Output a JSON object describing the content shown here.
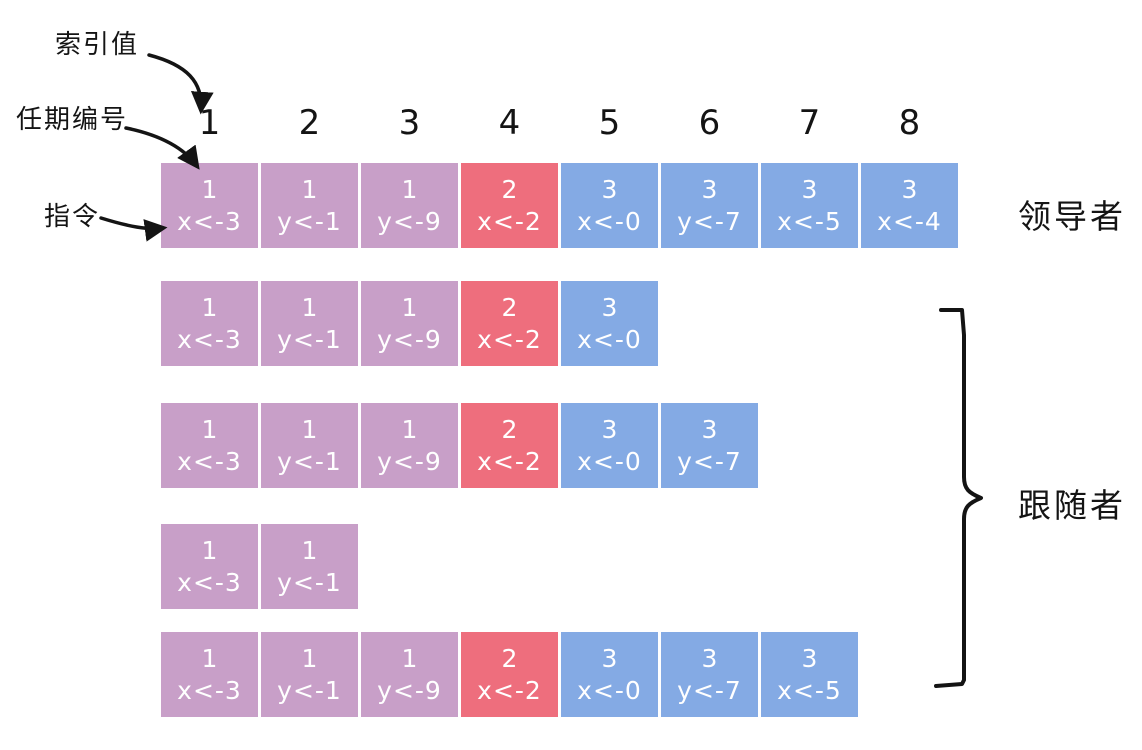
{
  "diagram": "raft-log-replication",
  "colors": {
    "background": "#ffffff",
    "ink": "#141414",
    "cell_text": "#ffffff",
    "term_colors": {
      "1": "#c89fc8",
      "2": "#ee6e7d",
      "3": "#84aae4"
    }
  },
  "annotations": {
    "index_label": "索引值",
    "term_label": "任期编号",
    "command_label": "指令"
  },
  "index_numbers": [
    "1",
    "2",
    "3",
    "4",
    "5",
    "6",
    "7",
    "8"
  ],
  "roles": {
    "leader_label": "领导者",
    "followers_label": "跟随者"
  },
  "logs": [
    {
      "id": "leader",
      "entries": [
        {
          "term": "1",
          "command": "x<-3"
        },
        {
          "term": "1",
          "command": "y<-1"
        },
        {
          "term": "1",
          "command": "y<-9"
        },
        {
          "term": "2",
          "command": "x<-2"
        },
        {
          "term": "3",
          "command": "x<-0"
        },
        {
          "term": "3",
          "command": "y<-7"
        },
        {
          "term": "3",
          "command": "x<-5"
        },
        {
          "term": "3",
          "command": "x<-4"
        }
      ]
    },
    {
      "id": "follower-1",
      "entries": [
        {
          "term": "1",
          "command": "x<-3"
        },
        {
          "term": "1",
          "command": "y<-1"
        },
        {
          "term": "1",
          "command": "y<-9"
        },
        {
          "term": "2",
          "command": "x<-2"
        },
        {
          "term": "3",
          "command": "x<-0"
        }
      ]
    },
    {
      "id": "follower-2",
      "entries": [
        {
          "term": "1",
          "command": "x<-3"
        },
        {
          "term": "1",
          "command": "y<-1"
        },
        {
          "term": "1",
          "command": "y<-9"
        },
        {
          "term": "2",
          "command": "x<-2"
        },
        {
          "term": "3",
          "command": "x<-0"
        },
        {
          "term": "3",
          "command": "y<-7"
        }
      ]
    },
    {
      "id": "follower-3",
      "entries": [
        {
          "term": "1",
          "command": "x<-3"
        },
        {
          "term": "1",
          "command": "y<-1"
        }
      ]
    },
    {
      "id": "follower-4",
      "entries": [
        {
          "term": "1",
          "command": "x<-3"
        },
        {
          "term": "1",
          "command": "y<-1"
        },
        {
          "term": "1",
          "command": "y<-9"
        },
        {
          "term": "2",
          "command": "x<-2"
        },
        {
          "term": "3",
          "command": "x<-0"
        },
        {
          "term": "3",
          "command": "y<-7"
        },
        {
          "term": "3",
          "command": "x<-5"
        }
      ]
    }
  ]
}
